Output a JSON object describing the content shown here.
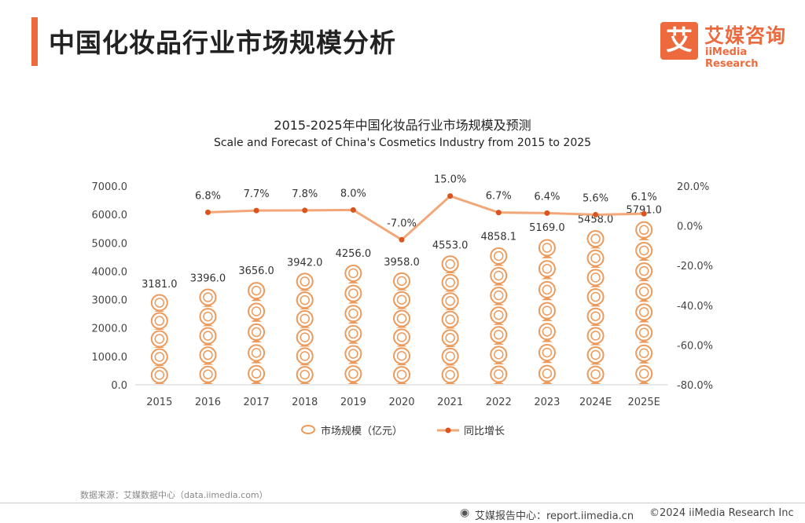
{
  "header": {
    "title": "中国化妆品行业市场规模分析",
    "accent_color": "#ec6a3d"
  },
  "logo": {
    "mark": "艾",
    "name_cn": "艾媒咨询",
    "name_en": "iiMedia Research"
  },
  "chart_data": {
    "type": "bar",
    "title": "2015-2025年中国化妆品行业市场规模及预测",
    "subtitle": "Scale and Forecast of China's Cosmetics Industry from 2015 to 2025",
    "categories": [
      "2015",
      "2016",
      "2017",
      "2018",
      "2019",
      "2020",
      "2021",
      "2022",
      "2023",
      "2024E",
      "2025E"
    ],
    "series": [
      {
        "name": "市场规模（亿元）",
        "type": "bar",
        "axis": "left",
        "values": [
          3181.0,
          3396.0,
          3656.0,
          3942.0,
          4256.0,
          3958.0,
          4553.0,
          4858.1,
          5169.0,
          5458.0,
          5791.0
        ],
        "labels": [
          "3181.0",
          "3396.0",
          "3656.0",
          "3942.0",
          "4256.0",
          "3958.0",
          "4553.0",
          "4858.1",
          "5169.0",
          "5458.0",
          "5791.0"
        ]
      },
      {
        "name": "同比增长",
        "type": "line",
        "axis": "right",
        "values": [
          null,
          6.8,
          7.7,
          7.8,
          8.0,
          -7.0,
          15.0,
          6.7,
          6.4,
          5.6,
          6.1
        ],
        "labels": [
          "",
          "6.8%",
          "7.7%",
          "7.8%",
          "8.0%",
          "-7.0%",
          "15.0%",
          "6.7%",
          "6.4%",
          "5.6%",
          "6.1%"
        ]
      }
    ],
    "yleft": {
      "min": 0,
      "max": 7000,
      "ticks": [
        "0.0",
        "1000.0",
        "2000.0",
        "3000.0",
        "4000.0",
        "5000.0",
        "6000.0",
        "7000.0"
      ]
    },
    "yright": {
      "min": -80,
      "max": 20,
      "ticks": [
        "-80.0%",
        "-60.0%",
        "-40.0%",
        "-20.0%",
        "0.0%",
        "20.0%"
      ]
    },
    "colors": {
      "bar": "#ec9a5c",
      "line": "#f2a779",
      "marker": "#d9541e"
    },
    "legend_position": "bottom"
  },
  "footer": {
    "source": "数据来源：艾媒数据中心（data.iimedia.com）",
    "report_center": "艾媒报告中心：report.iimedia.cn",
    "copyright": "©2024  iiMedia Research  Inc"
  }
}
